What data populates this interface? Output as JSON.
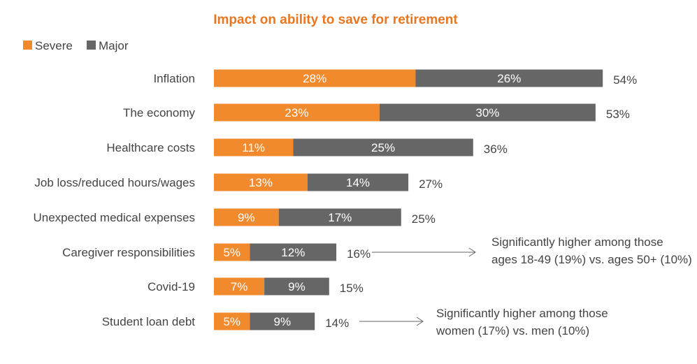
{
  "chart_data": {
    "type": "bar",
    "orientation": "horizontal",
    "stacked": true,
    "title": "Impact on ability to save for retirement",
    "categories": [
      "Inflation",
      "The economy",
      "Healthcare costs",
      "Job loss/reduced hours/wages",
      "Unexpected medical expenses",
      "Caregiver responsibilities",
      "Covid-19",
      "Student loan debt"
    ],
    "series": [
      {
        "name": "Severe",
        "values": [
          28,
          23,
          11,
          13,
          9,
          5,
          7,
          5
        ],
        "labels": [
          "28%",
          "23%",
          "11%",
          "13%",
          "9%",
          "5%",
          "7%",
          "5%"
        ]
      },
      {
        "name": "Major",
        "values": [
          26,
          30,
          25,
          14,
          17,
          12,
          9,
          9
        ],
        "labels": [
          "26%",
          "30%",
          "25%",
          "14%",
          "17%",
          "12%",
          "9%",
          "9%"
        ]
      }
    ],
    "totals": [
      "54%",
      "53%",
      "36%",
      "27%",
      "25%",
      "16%",
      "15%",
      "14%"
    ],
    "legend_position": "top-left",
    "grid": false,
    "annotations": [
      {
        "category": "Caregiver responsibilities",
        "lines": [
          "Significantly higher among those",
          "ages 18-49 (19%) vs. ages 50+ (10%)"
        ]
      },
      {
        "category": "Student loan debt",
        "lines": [
          "Significantly higher among those",
          "women (17%) vs. men (10%)"
        ]
      }
    ]
  },
  "colors": {
    "title": "#e87722",
    "severe": "#f08a2c",
    "major": "#666666",
    "text": "#444444",
    "bar_text": "#ffffff",
    "arrow": "#666666"
  }
}
